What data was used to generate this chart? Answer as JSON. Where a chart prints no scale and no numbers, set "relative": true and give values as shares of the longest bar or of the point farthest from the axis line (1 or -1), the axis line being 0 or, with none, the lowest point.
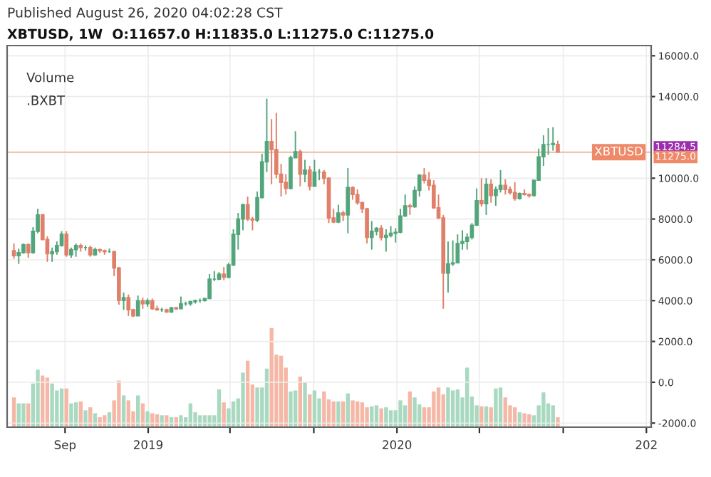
{
  "chart_data": [
    {
      "type": "candlestick",
      "title": "Published August 26, 2020 04:02:28 CST",
      "subtitle": "XBTUSD, 1W  O:11657.0 H:11835.0 L:11275.0 C:11275.0",
      "annotations": [
        "Volume",
        ".BXBT",
        "11284.5",
        "11275.0"
      ],
      "tick_labels": "y",
      "x": [
        "2018-06-18",
        "2018-06-25",
        "2018-07-02",
        "2018-07-09",
        "2018-07-16",
        "2018-07-23",
        "2018-07-30",
        "2018-08-06",
        "2018-08-13",
        "2018-08-20",
        "2018-08-27",
        "2018-09-03",
        "2018-09-10",
        "2018-09-17",
        "2018-09-24",
        "2018-10-01",
        "2018-10-08",
        "2018-10-15",
        "2018-10-22",
        "2018-10-29",
        "2018-11-05",
        "2018-11-12",
        "2018-11-19",
        "2018-11-26",
        "2018-12-03",
        "2018-12-10",
        "2018-12-17",
        "2018-12-24",
        "2018-12-31",
        "2019-01-07",
        "2019-01-14",
        "2019-01-21",
        "2019-01-28",
        "2019-02-04",
        "2019-02-11",
        "2019-02-18",
        "2019-02-25",
        "2019-03-04",
        "2019-03-11",
        "2019-03-18",
        "2019-03-25",
        "2019-04-01",
        "2019-04-08",
        "2019-04-15",
        "2019-04-22",
        "2019-04-29",
        "2019-05-06",
        "2019-05-13",
        "2019-05-20",
        "2019-05-27",
        "2019-06-03",
        "2019-06-10",
        "2019-06-17",
        "2019-06-24",
        "2019-07-01",
        "2019-07-08",
        "2019-07-15",
        "2019-07-22",
        "2019-07-29",
        "2019-08-05",
        "2019-08-12",
        "2019-08-19",
        "2019-08-26",
        "2019-09-02",
        "2019-09-09",
        "2019-09-16",
        "2019-09-23",
        "2019-09-30",
        "2019-10-07",
        "2019-10-14",
        "2019-10-21",
        "2019-10-28",
        "2019-11-04",
        "2019-11-11",
        "2019-11-18",
        "2019-11-25",
        "2019-12-02",
        "2019-12-09",
        "2019-12-16",
        "2019-12-23",
        "2019-12-30",
        "2020-01-06",
        "2020-01-13",
        "2020-01-20",
        "2020-01-27",
        "2020-02-03",
        "2020-02-10",
        "2020-02-17",
        "2020-02-24",
        "2020-03-02",
        "2020-03-09",
        "2020-03-16",
        "2020-03-23",
        "2020-03-30",
        "2020-04-06",
        "2020-04-13",
        "2020-04-20",
        "2020-04-27",
        "2020-05-04",
        "2020-05-11",
        "2020-05-18",
        "2020-05-25",
        "2020-06-01",
        "2020-06-08",
        "2020-06-15",
        "2020-06-22",
        "2020-06-29",
        "2020-07-06",
        "2020-07-13",
        "2020-07-20",
        "2020-07-27",
        "2020-08-03",
        "2020-08-10",
        "2020-08-17",
        "2020-08-24"
      ],
      "ohlc": [
        [
          6450,
          6800,
          6050,
          6200
        ],
        [
          6200,
          6550,
          5800,
          6350
        ],
        [
          6350,
          6800,
          6300,
          6750
        ],
        [
          6750,
          6800,
          6100,
          6350
        ],
        [
          6350,
          7600,
          6300,
          7400
        ],
        [
          7400,
          8500,
          7300,
          8200
        ],
        [
          8200,
          8250,
          6950,
          7000
        ],
        [
          7000,
          7150,
          5900,
          6300
        ],
        [
          6300,
          6600,
          5900,
          6400
        ],
        [
          6400,
          6900,
          6250,
          6700
        ],
        [
          6700,
          7400,
          6650,
          7250
        ],
        [
          7250,
          7400,
          6150,
          6250
        ],
        [
          6250,
          6600,
          6100,
          6500
        ],
        [
          6500,
          6800,
          6150,
          6700
        ],
        [
          6700,
          6800,
          6400,
          6600
        ],
        [
          6600,
          6700,
          6450,
          6600
        ],
        [
          6600,
          6700,
          6150,
          6250
        ],
        [
          6250,
          6600,
          6200,
          6500
        ],
        [
          6500,
          6550,
          6350,
          6450
        ],
        [
          6450,
          6500,
          6250,
          6400
        ],
        [
          6400,
          6550,
          6350,
          6400
        ],
        [
          6400,
          6450,
          5200,
          5600
        ],
        [
          5600,
          5650,
          3800,
          4000
        ],
        [
          4000,
          4400,
          3550,
          4150
        ],
        [
          4150,
          4300,
          3250,
          3550
        ],
        [
          3550,
          3600,
          3200,
          3250
        ],
        [
          3250,
          4250,
          3250,
          4000
        ],
        [
          4000,
          4150,
          3600,
          3850
        ],
        [
          3850,
          4100,
          3700,
          4000
        ],
        [
          4000,
          4100,
          3550,
          3600
        ],
        [
          3600,
          3750,
          3500,
          3550
        ],
        [
          3550,
          3650,
          3450,
          3550
        ],
        [
          3550,
          3600,
          3400,
          3450
        ],
        [
          3450,
          3700,
          3400,
          3650
        ],
        [
          3650,
          3700,
          3550,
          3600
        ],
        [
          3600,
          4200,
          3600,
          3850
        ],
        [
          3850,
          3950,
          3750,
          3850
        ],
        [
          3850,
          4000,
          3750,
          3950
        ],
        [
          3950,
          4050,
          3850,
          4000
        ],
        [
          4000,
          4100,
          3900,
          4000
        ],
        [
          4000,
          4150,
          3950,
          4100
        ],
        [
          4100,
          5300,
          4100,
          5050
        ],
        [
          5050,
          5450,
          4950,
          5050
        ],
        [
          5050,
          5400,
          5000,
          5300
        ],
        [
          5300,
          5650,
          5000,
          5150
        ],
        [
          5150,
          5850,
          5100,
          5750
        ],
        [
          5750,
          7500,
          5700,
          7250
        ],
        [
          7250,
          8300,
          6500,
          8000
        ],
        [
          8000,
          8750,
          7450,
          8700
        ],
        [
          8700,
          9100,
          7900,
          8000
        ],
        [
          8000,
          8100,
          7450,
          7950
        ],
        [
          7950,
          9350,
          7850,
          9050
        ],
        [
          9050,
          11200,
          9000,
          10800
        ],
        [
          10800,
          13900,
          10300,
          11800
        ],
        [
          11800,
          12900,
          9700,
          11400
        ],
        [
          11400,
          13200,
          10000,
          10200
        ],
        [
          10200,
          10700,
          9100,
          9800
        ],
        [
          9800,
          10200,
          9200,
          9500
        ],
        [
          9500,
          11100,
          9450,
          11000
        ],
        [
          11000,
          12300,
          11000,
          11300
        ],
        [
          11300,
          11400,
          9600,
          10200
        ],
        [
          10200,
          10900,
          9800,
          10400
        ],
        [
          10400,
          10600,
          9400,
          9600
        ],
        [
          9600,
          10900,
          9600,
          10300
        ],
        [
          10300,
          10450,
          9900,
          10300
        ],
        [
          10300,
          10400,
          9700,
          10000
        ],
        [
          10000,
          10050,
          7800,
          8050
        ],
        [
          8050,
          8500,
          7800,
          7850
        ],
        [
          7850,
          8700,
          7800,
          8300
        ],
        [
          8300,
          8400,
          7900,
          8200
        ],
        [
          8200,
          10500,
          7300,
          9550
        ],
        [
          9550,
          9600,
          8950,
          9200
        ],
        [
          9200,
          9450,
          8700,
          8800
        ],
        [
          8800,
          8850,
          8300,
          8500
        ],
        [
          8500,
          8550,
          6800,
          7100
        ],
        [
          7100,
          7900,
          6500,
          7400
        ],
        [
          7400,
          7600,
          7200,
          7550
        ],
        [
          7550,
          7700,
          6950,
          7100
        ],
        [
          7100,
          7500,
          6400,
          7200
        ],
        [
          7200,
          7650,
          7100,
          7300
        ],
        [
          7300,
          7550,
          6850,
          7350
        ],
        [
          7350,
          8500,
          7300,
          8150
        ],
        [
          8150,
          9200,
          8100,
          8650
        ],
        [
          8650,
          8750,
          8200,
          8600
        ],
        [
          8600,
          9600,
          8550,
          9400
        ],
        [
          9400,
          10200,
          9100,
          10150
        ],
        [
          10150,
          10500,
          9750,
          9900
        ],
        [
          9900,
          10300,
          9400,
          9650
        ],
        [
          9650,
          9900,
          8500,
          8550
        ],
        [
          8550,
          9200,
          8000,
          8050
        ],
        [
          8050,
          8200,
          3600,
          5350
        ],
        [
          5350,
          6900,
          4400,
          5800
        ],
        [
          5800,
          6950,
          5700,
          5850
        ],
        [
          5850,
          7250,
          5850,
          6800
        ],
        [
          6800,
          7450,
          6500,
          6900
        ],
        [
          6900,
          7300,
          6500,
          7100
        ],
        [
          7100,
          7800,
          7000,
          7700
        ],
        [
          7700,
          9500,
          7650,
          8900
        ],
        [
          8900,
          10000,
          8600,
          8750
        ],
        [
          8750,
          10000,
          8200,
          9700
        ],
        [
          9700,
          9950,
          8800,
          9150
        ],
        [
          9150,
          9600,
          8650,
          9450
        ],
        [
          9450,
          10400,
          9300,
          9650
        ],
        [
          9650,
          9950,
          9200,
          9450
        ],
        [
          9450,
          9600,
          9200,
          9300
        ],
        [
          9300,
          9800,
          8900,
          9000
        ],
        [
          9000,
          9300,
          8950,
          9250
        ],
        [
          9250,
          9450,
          9150,
          9200
        ],
        [
          9200,
          9250,
          9050,
          9150
        ],
        [
          9150,
          9900,
          9100,
          9900
        ],
        [
          9900,
          11450,
          9900,
          11050
        ],
        [
          11050,
          12100,
          10600,
          11650
        ],
        [
          11650,
          12450,
          11150,
          11650
        ],
        [
          11650,
          12500,
          11350,
          11700
        ],
        [
          11657,
          11835,
          11275,
          11275
        ]
      ],
      "colors": [
        "#e0806a",
        "#53a57b",
        "#53a57b",
        "#e0806a",
        "#53a57b",
        "#53a57b",
        "#e0806a",
        "#e0806a",
        "#53a57b",
        "#53a57b",
        "#53a57b",
        "#e0806a",
        "#53a57b",
        "#53a57b",
        "#e0806a",
        "#53a57b",
        "#e0806a",
        "#53a57b",
        "#e0806a",
        "#e0806a",
        "#53a57b",
        "#e0806a",
        "#e0806a",
        "#53a57b",
        "#e0806a",
        "#e0806a",
        "#53a57b",
        "#e0806a",
        "#53a57b",
        "#e0806a",
        "#e0806a",
        "#53a57b",
        "#e0806a",
        "#53a57b",
        "#e0806a",
        "#53a57b",
        "#53a57b",
        "#53a57b",
        "#53a57b",
        "#53a57b",
        "#53a57b",
        "#53a57b",
        "#53a57b",
        "#53a57b",
        "#e0806a",
        "#53a57b",
        "#53a57b",
        "#53a57b",
        "#53a57b",
        "#e0806a",
        "#e0806a",
        "#53a57b",
        "#53a57b",
        "#53a57b",
        "#e0806a",
        "#e0806a",
        "#e0806a",
        "#e0806a",
        "#53a57b",
        "#53a57b",
        "#e0806a",
        "#53a57b",
        "#e0806a",
        "#53a57b",
        "#53a57b",
        "#e0806a",
        "#e0806a",
        "#e0806a",
        "#53a57b",
        "#e0806a",
        "#53a57b",
        "#e0806a",
        "#e0806a",
        "#e0806a",
        "#e0806a",
        "#53a57b",
        "#53a57b",
        "#e0806a",
        "#53a57b",
        "#53a57b",
        "#53a57b",
        "#53a57b",
        "#53a57b",
        "#e0806a",
        "#53a57b",
        "#53a57b",
        "#e0806a",
        "#e0806a",
        "#e0806a",
        "#e0806a",
        "#e0806a",
        "#53a57b",
        "#53a57b",
        "#53a57b",
        "#53a57b",
        "#53a57b",
        "#53a57b",
        "#53a57b",
        "#e0806a",
        "#53a57b",
        "#e0806a",
        "#53a57b",
        "#53a57b",
        "#e0806a",
        "#e0806a",
        "#e0806a",
        "#53a57b",
        "#e0806a",
        "#e0806a",
        "#53a57b",
        "#53a57b",
        "#53a57b",
        "#53a57b",
        "#53a57b",
        "#e0806a"
      ],
      "xlim": [
        "2018-06-08",
        "2021-01-08"
      ],
      "ylim": [
        -2200,
        16500
      ],
      "yticks": [
        {
          "value": -2000,
          "label": "-2000.0"
        },
        {
          "value": 0,
          "label": "0.0"
        },
        {
          "value": 2000,
          "label": "2000.0"
        },
        {
          "value": 4000,
          "label": "4000.0"
        },
        {
          "value": 6000,
          "label": "6000.0"
        },
        {
          "value": 8000,
          "label": "8000.0"
        },
        {
          "value": 10000,
          "label": "10000.0"
        },
        {
          "value": 14000,
          "label": "14000.0"
        },
        {
          "value": 16000,
          "label": "16000.0"
        }
      ],
      "ref_lines": [
        {
          "axis": "y",
          "value": 11275,
          "label": "XBTUSD",
          "color": "#f3c3ae"
        }
      ],
      "grid": true
    },
    {
      "type": "bar",
      "relative": true,
      "tick_labels": "x",
      "grid": "x",
      "xlim": [
        "2018-06-08",
        "2021-01-08"
      ],
      "xticks": [
        {
          "value": "2018-09-01",
          "label": "Sep"
        },
        {
          "value": "2019-01-01",
          "label": "2019"
        },
        {
          "value": "2019-05-01",
          "label": null
        },
        {
          "value": "2019-09-01",
          "label": null
        },
        {
          "value": "2020-01-01",
          "label": "2020"
        },
        {
          "value": "2020-05-01",
          "label": null
        },
        {
          "value": "2020-09-01",
          "label": null
        },
        {
          "value": "2021-01-01",
          "label": "202"
        }
      ],
      "x": [
        "2018-06-18",
        "2018-06-25",
        "2018-07-02",
        "2018-07-09",
        "2018-07-16",
        "2018-07-23",
        "2018-07-30",
        "2018-08-06",
        "2018-08-13",
        "2018-08-20",
        "2018-08-27",
        "2018-09-03",
        "2018-09-10",
        "2018-09-17",
        "2018-09-24",
        "2018-10-01",
        "2018-10-08",
        "2018-10-15",
        "2018-10-22",
        "2018-10-29",
        "2018-11-05",
        "2018-11-12",
        "2018-11-19",
        "2018-11-26",
        "2018-12-03",
        "2018-12-10",
        "2018-12-17",
        "2018-12-24",
        "2018-12-31",
        "2019-01-07",
        "2019-01-14",
        "2019-01-21",
        "2019-01-28",
        "2019-02-04",
        "2019-02-11",
        "2019-02-18",
        "2019-02-25",
        "2019-03-04",
        "2019-03-11",
        "2019-03-18",
        "2019-03-25",
        "2019-04-01",
        "2019-04-08",
        "2019-04-15",
        "2019-04-22",
        "2019-04-29",
        "2019-05-06",
        "2019-05-13",
        "2019-05-20",
        "2019-05-27",
        "2019-06-03",
        "2019-06-10",
        "2019-06-17",
        "2019-06-24",
        "2019-07-01",
        "2019-07-08",
        "2019-07-15",
        "2019-07-22",
        "2019-07-29",
        "2019-08-05",
        "2019-08-12",
        "2019-08-19",
        "2019-08-26",
        "2019-09-02",
        "2019-09-09",
        "2019-09-16",
        "2019-09-23",
        "2019-09-30",
        "2019-10-07",
        "2019-10-14",
        "2019-10-21",
        "2019-10-28",
        "2019-11-04",
        "2019-11-11",
        "2019-11-18",
        "2019-11-25",
        "2019-12-02",
        "2019-12-09",
        "2019-12-16",
        "2019-12-23",
        "2019-12-30",
        "2020-01-06",
        "2020-01-13",
        "2020-01-20",
        "2020-01-27",
        "2020-02-03",
        "2020-02-10",
        "2020-02-17",
        "2020-02-24",
        "2020-03-02",
        "2020-03-09",
        "2020-03-16",
        "2020-03-23",
        "2020-03-30",
        "2020-04-06",
        "2020-04-13",
        "2020-04-20",
        "2020-04-27",
        "2020-05-04",
        "2020-05-11",
        "2020-05-18",
        "2020-05-25",
        "2020-06-01",
        "2020-06-08",
        "2020-06-15",
        "2020-06-22",
        "2020-06-29",
        "2020-07-06",
        "2020-07-13",
        "2020-07-20",
        "2020-07-27",
        "2020-08-03",
        "2020-08-10",
        "2020-08-17",
        "2020-08-24"
      ],
      "values": [
        0.3,
        0.24,
        0.24,
        0.24,
        0.44,
        0.58,
        0.52,
        0.5,
        0.44,
        0.37,
        0.39,
        0.39,
        0.24,
        0.25,
        0.26,
        0.17,
        0.2,
        0.14,
        0.1,
        0.12,
        0.15,
        0.27,
        0.47,
        0.32,
        0.27,
        0.16,
        0.32,
        0.24,
        0.16,
        0.14,
        0.13,
        0.12,
        0.12,
        0.1,
        0.1,
        0.12,
        0.1,
        0.24,
        0.15,
        0.12,
        0.12,
        0.12,
        0.12,
        0.38,
        0.25,
        0.19,
        0.26,
        0.29,
        0.55,
        0.67,
        0.43,
        0.4,
        0.4,
        0.59,
        1.0,
        0.73,
        0.72,
        0.6,
        0.36,
        0.37,
        0.51,
        0.45,
        0.33,
        0.37,
        0.29,
        0.36,
        0.28,
        0.26,
        0.26,
        0.26,
        0.34,
        0.27,
        0.26,
        0.25,
        0.2,
        0.21,
        0.22,
        0.19,
        0.2,
        0.17,
        0.17,
        0.27,
        0.22,
        0.36,
        0.3,
        0.23,
        0.2,
        0.2,
        0.36,
        0.4,
        0.33,
        0.4,
        0.37,
        0.38,
        0.3,
        0.6,
        0.31,
        0.22,
        0.21,
        0.21,
        0.2,
        0.39,
        0.4,
        0.3,
        0.22,
        0.2,
        0.15,
        0.14,
        0.13,
        0.12,
        0.22,
        0.35,
        0.24,
        0.22,
        0.1
      ],
      "colors": [
        "#f5b7a6",
        "#a9d9c0",
        "#a9d9c0",
        "#f5b7a6",
        "#a9d9c0",
        "#a9d9c0",
        "#f5b7a6",
        "#f5b7a6",
        "#a9d9c0",
        "#a9d9c0",
        "#a9d9c0",
        "#f5b7a6",
        "#a9d9c0",
        "#a9d9c0",
        "#f5b7a6",
        "#a9d9c0",
        "#f5b7a6",
        "#a9d9c0",
        "#f5b7a6",
        "#f5b7a6",
        "#a9d9c0",
        "#f5b7a6",
        "#f5b7a6",
        "#a9d9c0",
        "#f5b7a6",
        "#f5b7a6",
        "#a9d9c0",
        "#f5b7a6",
        "#a9d9c0",
        "#f5b7a6",
        "#f5b7a6",
        "#a9d9c0",
        "#f5b7a6",
        "#a9d9c0",
        "#f5b7a6",
        "#a9d9c0",
        "#a9d9c0",
        "#a9d9c0",
        "#a9d9c0",
        "#a9d9c0",
        "#a9d9c0",
        "#a9d9c0",
        "#a9d9c0",
        "#a9d9c0",
        "#f5b7a6",
        "#a9d9c0",
        "#a9d9c0",
        "#a9d9c0",
        "#a9d9c0",
        "#f5b7a6",
        "#f5b7a6",
        "#a9d9c0",
        "#a9d9c0",
        "#a9d9c0",
        "#f5b7a6",
        "#f5b7a6",
        "#f5b7a6",
        "#f5b7a6",
        "#a9d9c0",
        "#a9d9c0",
        "#f5b7a6",
        "#a9d9c0",
        "#f5b7a6",
        "#a9d9c0",
        "#a9d9c0",
        "#f5b7a6",
        "#f5b7a6",
        "#f5b7a6",
        "#a9d9c0",
        "#f5b7a6",
        "#a9d9c0",
        "#f5b7a6",
        "#f5b7a6",
        "#f5b7a6",
        "#f5b7a6",
        "#a9d9c0",
        "#a9d9c0",
        "#f5b7a6",
        "#a9d9c0",
        "#a9d9c0",
        "#a9d9c0",
        "#a9d9c0",
        "#a9d9c0",
        "#f5b7a6",
        "#a9d9c0",
        "#a9d9c0",
        "#f5b7a6",
        "#f5b7a6",
        "#f5b7a6",
        "#f5b7a6",
        "#f5b7a6",
        "#a9d9c0",
        "#a9d9c0",
        "#a9d9c0",
        "#a9d9c0",
        "#a9d9c0",
        "#a9d9c0",
        "#a9d9c0",
        "#f5b7a6",
        "#a9d9c0",
        "#f5b7a6",
        "#a9d9c0",
        "#a9d9c0",
        "#f5b7a6",
        "#f5b7a6",
        "#f5b7a6",
        "#a9d9c0",
        "#f5b7a6",
        "#f5b7a6",
        "#a9d9c0",
        "#a9d9c0",
        "#a9d9c0",
        "#a9d9c0",
        "#a9d9c0",
        "#f5b7a6"
      ]
    }
  ]
}
